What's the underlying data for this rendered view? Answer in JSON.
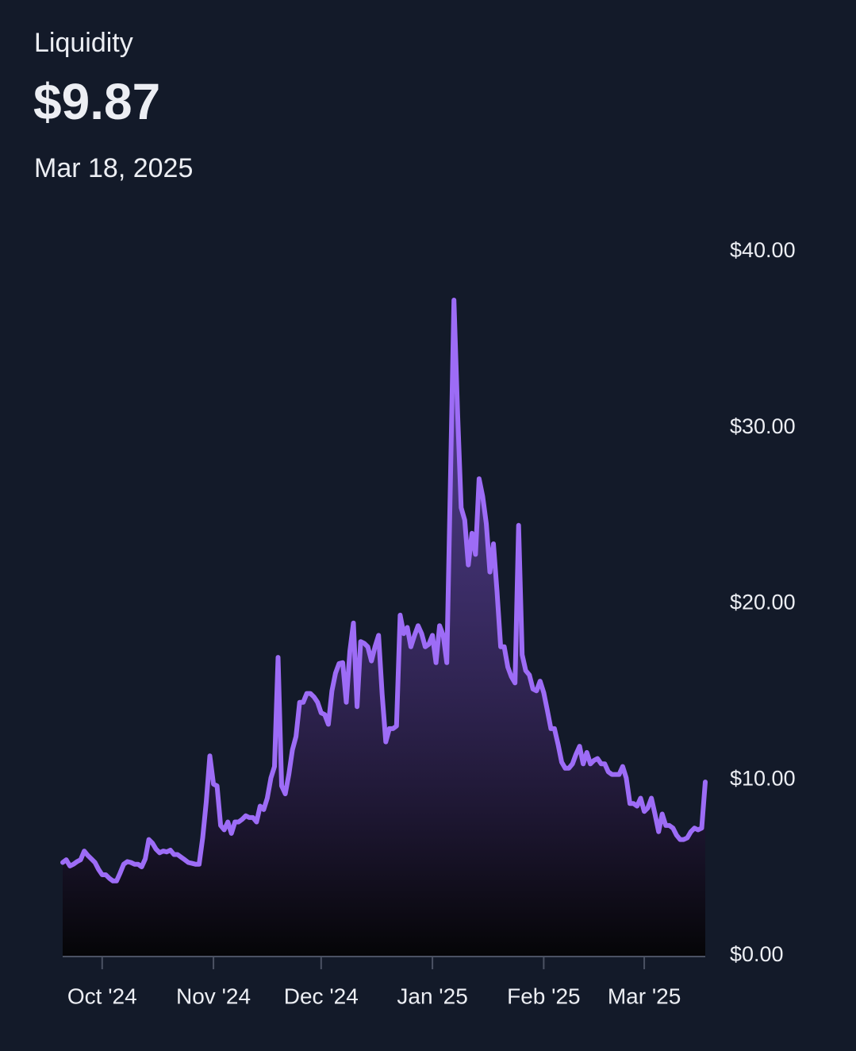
{
  "header": {
    "title": "Liquidity",
    "value_label": "$9.87",
    "date_label": "Mar 18, 2025"
  },
  "chart_data": {
    "type": "line",
    "x": [
      "2024-09-20",
      "2024-09-21",
      "2024-09-22",
      "2024-09-23",
      "2024-09-24",
      "2024-09-25",
      "2024-09-26",
      "2024-09-27",
      "2024-09-28",
      "2024-09-29",
      "2024-09-30",
      "2024-10-01",
      "2024-10-02",
      "2024-10-03",
      "2024-10-04",
      "2024-10-05",
      "2024-10-06",
      "2024-10-07",
      "2024-10-08",
      "2024-10-09",
      "2024-10-10",
      "2024-10-11",
      "2024-10-12",
      "2024-10-13",
      "2024-10-14",
      "2024-10-15",
      "2024-10-16",
      "2024-10-17",
      "2024-10-18",
      "2024-10-19",
      "2024-10-20",
      "2024-10-21",
      "2024-10-22",
      "2024-10-23",
      "2024-10-24",
      "2024-10-25",
      "2024-10-26",
      "2024-10-27",
      "2024-10-28",
      "2024-10-29",
      "2024-10-30",
      "2024-10-31",
      "2024-11-01",
      "2024-11-02",
      "2024-11-03",
      "2024-11-04",
      "2024-11-05",
      "2024-11-06",
      "2024-11-07",
      "2024-11-08",
      "2024-11-09",
      "2024-11-10",
      "2024-11-11",
      "2024-11-12",
      "2024-11-13",
      "2024-11-14",
      "2024-11-15",
      "2024-11-16",
      "2024-11-17",
      "2024-11-18",
      "2024-11-19",
      "2024-11-20",
      "2024-11-21",
      "2024-11-22",
      "2024-11-23",
      "2024-11-24",
      "2024-11-25",
      "2024-11-26",
      "2024-11-27",
      "2024-11-28",
      "2024-11-29",
      "2024-11-30",
      "2024-12-01",
      "2024-12-02",
      "2024-12-03",
      "2024-12-04",
      "2024-12-05",
      "2024-12-06",
      "2024-12-07",
      "2024-12-08",
      "2024-12-09",
      "2024-12-10",
      "2024-12-11",
      "2024-12-12",
      "2024-12-13",
      "2024-12-14",
      "2024-12-15",
      "2024-12-16",
      "2024-12-17",
      "2024-12-18",
      "2024-12-19",
      "2024-12-20",
      "2024-12-21",
      "2024-12-22",
      "2024-12-23",
      "2024-12-24",
      "2024-12-25",
      "2024-12-26",
      "2024-12-27",
      "2024-12-28",
      "2024-12-29",
      "2024-12-30",
      "2024-12-31",
      "2025-01-01",
      "2025-01-02",
      "2025-01-03",
      "2025-01-04",
      "2025-01-05",
      "2025-01-06",
      "2025-01-07",
      "2025-01-08",
      "2025-01-09",
      "2025-01-10",
      "2025-01-11",
      "2025-01-12",
      "2025-01-13",
      "2025-01-14",
      "2025-01-15",
      "2025-01-16",
      "2025-01-17",
      "2025-01-18",
      "2025-01-19",
      "2025-01-20",
      "2025-01-21",
      "2025-01-22",
      "2025-01-23",
      "2025-01-24",
      "2025-01-25",
      "2025-01-26",
      "2025-01-27",
      "2025-01-28",
      "2025-01-29",
      "2025-01-30",
      "2025-01-31",
      "2025-02-01",
      "2025-02-02",
      "2025-02-03",
      "2025-02-04",
      "2025-02-05",
      "2025-02-06",
      "2025-02-07",
      "2025-02-08",
      "2025-02-09",
      "2025-02-10",
      "2025-02-11",
      "2025-02-12",
      "2025-02-13",
      "2025-02-14",
      "2025-02-15",
      "2025-02-16",
      "2025-02-17",
      "2025-02-18",
      "2025-02-19",
      "2025-02-20",
      "2025-02-21",
      "2025-02-22",
      "2025-02-23",
      "2025-02-24",
      "2025-02-25",
      "2025-02-26",
      "2025-02-27",
      "2025-02-28",
      "2025-03-01",
      "2025-03-02",
      "2025-03-03",
      "2025-03-04",
      "2025-03-05",
      "2025-03-06",
      "2025-03-07",
      "2025-03-08",
      "2025-03-09",
      "2025-03-10",
      "2025-03-11",
      "2025-03-12",
      "2025-03-13",
      "2025-03-14",
      "2025-03-15",
      "2025-03-16",
      "2025-03-17",
      "2025-03-18"
    ],
    "series": [
      {
        "name": "Liquidity",
        "color": "#9d6cf6",
        "values": [
          5.3,
          5.45,
          5.1,
          5.2,
          5.35,
          5.45,
          5.95,
          5.7,
          5.5,
          5.3,
          4.9,
          4.6,
          4.6,
          4.4,
          4.25,
          4.25,
          4.7,
          5.2,
          5.35,
          5.3,
          5.2,
          5.2,
          5.05,
          5.5,
          6.6,
          6.4,
          6.05,
          5.85,
          5.95,
          5.9,
          6.0,
          5.75,
          5.75,
          5.6,
          5.45,
          5.3,
          5.25,
          5.2,
          5.2,
          6.7,
          8.75,
          11.35,
          9.75,
          9.65,
          7.4,
          7.15,
          7.6,
          6.95,
          7.6,
          7.6,
          7.75,
          7.95,
          7.85,
          7.85,
          7.6,
          8.5,
          8.3,
          8.95,
          10.1,
          10.75,
          16.95,
          9.65,
          9.2,
          10.3,
          11.7,
          12.45,
          14.4,
          14.4,
          14.9,
          14.9,
          14.7,
          14.4,
          13.8,
          13.7,
          13.15,
          15.05,
          16.05,
          16.6,
          16.65,
          14.4,
          17.3,
          18.9,
          14.15,
          17.85,
          17.75,
          17.55,
          16.75,
          17.55,
          18.2,
          14.85,
          12.15,
          12.9,
          12.9,
          13.05,
          19.35,
          18.3,
          18.65,
          17.55,
          18.2,
          18.75,
          18.3,
          17.55,
          17.7,
          18.2,
          16.65,
          18.75,
          18.2,
          16.65,
          26.8,
          37.25,
          30.85,
          25.45,
          24.75,
          22.2,
          24.0,
          22.8,
          27.1,
          26.1,
          24.55,
          21.8,
          23.4,
          20.7,
          17.55,
          17.55,
          16.4,
          15.85,
          15.5,
          24.45,
          17.1,
          16.2,
          15.95,
          15.15,
          15.05,
          15.6,
          14.95,
          13.95,
          12.9,
          12.9,
          12.0,
          11.0,
          10.65,
          10.65,
          10.9,
          11.45,
          11.9,
          10.9,
          11.55,
          10.9,
          11.1,
          11.2,
          10.9,
          10.9,
          10.45,
          10.3,
          10.3,
          10.3,
          10.75,
          10.1,
          8.65,
          8.65,
          8.5,
          8.95,
          8.2,
          8.4,
          8.95,
          8.05,
          7.05,
          8.05,
          7.4,
          7.4,
          7.25,
          6.85,
          6.6,
          6.6,
          6.7,
          7.05,
          7.25,
          7.15,
          7.25,
          9.87
        ]
      }
    ],
    "xlim": [
      "2024-09-20",
      "2025-03-18"
    ],
    "xticks": [
      {
        "value": "2024-10-01",
        "label": "Oct '24"
      },
      {
        "value": "2024-11-01",
        "label": "Nov '24"
      },
      {
        "value": "2024-12-01",
        "label": "Dec '24"
      },
      {
        "value": "2025-01-01",
        "label": "Jan '25"
      },
      {
        "value": "2025-02-01",
        "label": "Feb '25"
      },
      {
        "value": "2025-03-01",
        "label": "Mar '25"
      }
    ],
    "ylim": [
      0,
      40
    ],
    "yticks": [
      {
        "value": 0,
        "label": "$0.00"
      },
      {
        "value": 10,
        "label": "$10.00"
      },
      {
        "value": 20,
        "label": "$20.00"
      },
      {
        "value": 30,
        "label": "$30.00"
      },
      {
        "value": 40,
        "label": "$40.00"
      }
    ],
    "grid": false
  }
}
